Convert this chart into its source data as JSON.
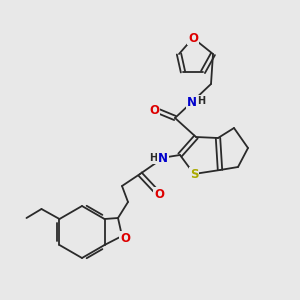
{
  "bg_color": "#e8e8e8",
  "bond_color": "#2a2a2a",
  "atom_colors": {
    "O": "#dd0000",
    "N": "#0000cc",
    "S": "#aaaa00",
    "C": "#2a2a2a",
    "H": "#2a2a2a"
  },
  "font_size_atom": 8.5,
  "font_size_small": 7.0,
  "lw": 1.3
}
